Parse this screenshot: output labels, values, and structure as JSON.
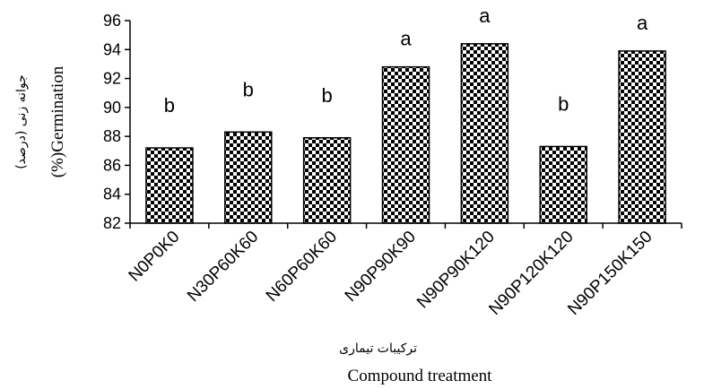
{
  "chart_data": {
    "type": "bar",
    "categories": [
      "N0P0K0",
      "N30P60K60",
      "N60P60K60",
      "N90P90K90",
      "N90P90K120",
      "N90P120K120",
      "N90P150K150"
    ],
    "values": [
      87.2,
      88.3,
      87.9,
      92.8,
      94.4,
      87.3,
      93.9
    ],
    "letters": [
      "b",
      "b",
      "b",
      "a",
      "a",
      "b",
      "a"
    ],
    "ylim": [
      82,
      96
    ],
    "yticks": [
      82,
      84,
      86,
      88,
      90,
      92,
      94,
      96
    ],
    "ylabel": "(%)Germination",
    "ylabel_persian": "جوانه زنی (درصد)",
    "xlabel": "Compound treatment",
    "xlabel_persian": "ترکیبات تیماری",
    "bar_fill": "checkered black and white",
    "grid": false,
    "legend": "none"
  }
}
